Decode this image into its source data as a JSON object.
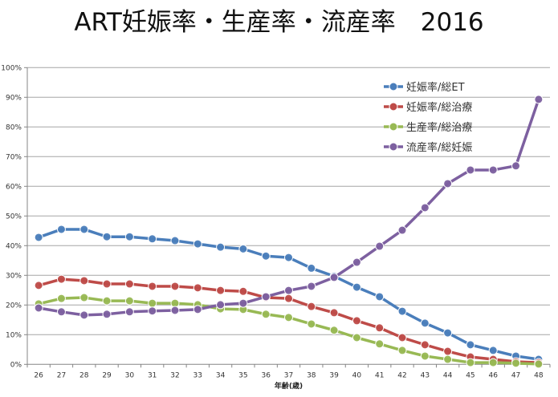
{
  "chart_data": {
    "type": "line",
    "title": "ART妊娠率・生産率・流産率　2016",
    "xlabel": "年齢(歳)",
    "ylabel": "",
    "categories": [
      "26",
      "27",
      "28",
      "29",
      "30",
      "31",
      "32",
      "33",
      "34",
      "35",
      "36",
      "37",
      "38",
      "39",
      "40",
      "41",
      "42",
      "43",
      "44",
      "45",
      "46",
      "47",
      "48"
    ],
    "ylim": [
      0,
      100
    ],
    "yticks": [
      "0%",
      "10%",
      "20%",
      "30%",
      "40%",
      "50%",
      "60%",
      "70%",
      "80%",
      "90%",
      "100%"
    ],
    "grid": true,
    "legend": "top-right",
    "series": [
      {
        "name": "妊娠率/総ET",
        "color": "#4a7ebb",
        "values": [
          42.8,
          45.5,
          45.5,
          43.0,
          43.0,
          42.3,
          41.7,
          40.6,
          39.5,
          38.9,
          36.5,
          36.0,
          32.4,
          29.7,
          26.0,
          22.8,
          17.9,
          13.9,
          10.6,
          6.6,
          4.7,
          2.8,
          1.7
        ]
      },
      {
        "name": "妊娠率/総治療",
        "color": "#be4b48",
        "values": [
          26.6,
          28.7,
          28.2,
          27.1,
          27.1,
          26.3,
          26.3,
          25.8,
          24.9,
          24.6,
          22.5,
          22.2,
          19.5,
          17.4,
          14.7,
          12.3,
          9.0,
          6.6,
          4.4,
          2.5,
          1.7,
          0.9,
          0.6
        ]
      },
      {
        "name": "生産率/総治療",
        "color": "#98b954",
        "values": [
          20.4,
          22.2,
          22.5,
          21.4,
          21.4,
          20.6,
          20.6,
          20.1,
          18.7,
          18.5,
          16.9,
          15.8,
          13.6,
          11.5,
          9.0,
          6.9,
          4.7,
          2.8,
          1.7,
          0.6,
          0.6,
          0.4,
          0.1
        ]
      },
      {
        "name": "流産率/総妊娠",
        "color": "#7d60a0",
        "values": [
          19.0,
          17.7,
          16.6,
          16.9,
          17.7,
          18.0,
          18.2,
          18.5,
          20.1,
          20.6,
          22.8,
          24.9,
          26.3,
          29.3,
          34.4,
          39.8,
          45.2,
          52.8,
          60.9,
          65.5,
          65.5,
          66.9,
          89.3
        ]
      }
    ]
  }
}
